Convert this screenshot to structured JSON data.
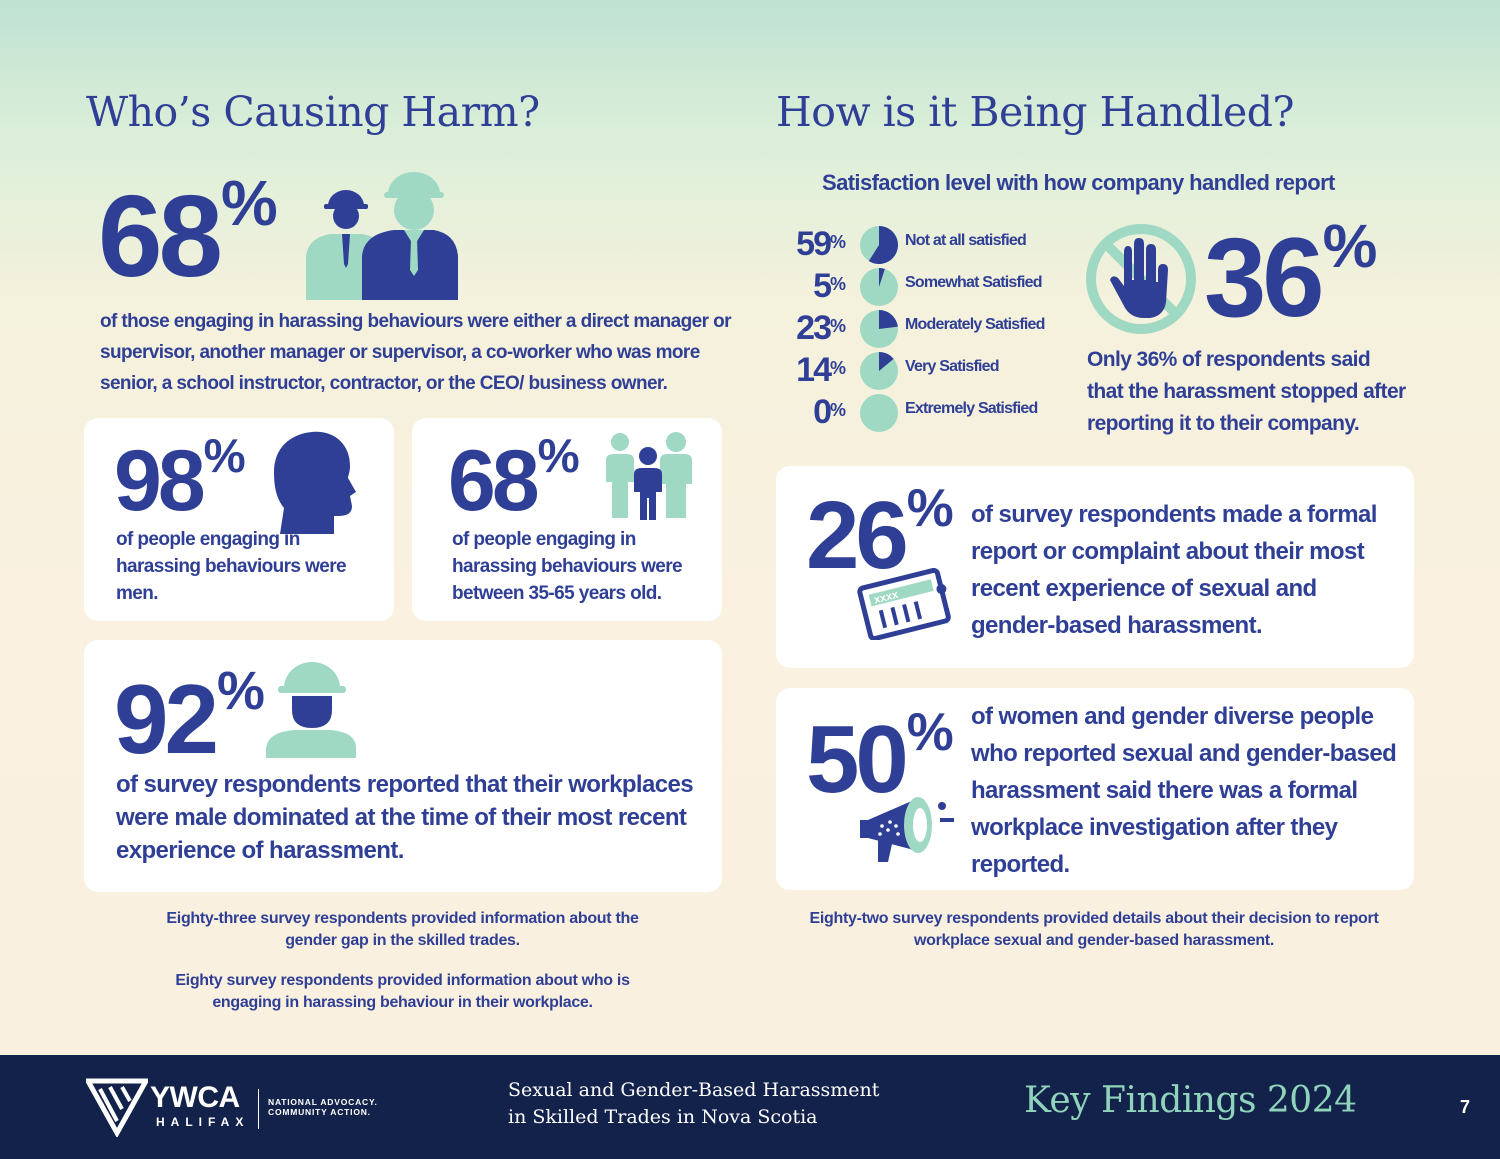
{
  "left": {
    "title": "Who’s Causing Harm?",
    "stat_managers": {
      "number": "68",
      "pct": "%",
      "text": "of those engaging in harassing behaviours were either a direct manager or supervisor, another manager or supervisor, a co-worker who was more senior, a school instructor, contractor, or the CEO/ business owner."
    },
    "stat_men": {
      "number": "98",
      "pct": "%",
      "text": "of people engaging in harassing behaviours were men."
    },
    "stat_age": {
      "number": "68",
      "pct": "%",
      "text": "of people engaging in harassing behaviours were between 35-65 years old."
    },
    "stat_male_dominated": {
      "number": "92",
      "pct": "%",
      "text": "of survey respondents reported that their workplaces were male dominated at the time of their most recent experience of harassment."
    },
    "note_1": "Eighty-three survey respondents provided information about the gender gap in the skilled trades.",
    "note_2": "Eighty survey respondents provided information about who is engaging in harassing behaviour in their workplace."
  },
  "right": {
    "title": "How is it Being Handled?",
    "satisfaction_title": "Satisfaction level with how company handled report",
    "stat_stopped": {
      "number": "36",
      "pct": "%",
      "text": "Only 36% of respondents said that the harassment stopped after reporting it to their company."
    },
    "stat_formal_report": {
      "number": "26",
      "pct": "%",
      "text": "of survey respondents made a formal report or complaint about their most recent experience of sexual and gender-based harassment."
    },
    "stat_investigation": {
      "number": "50",
      "pct": "%",
      "text": "of women and gender diverse people who reported sexual and gender-based harassment said there was a formal workplace investigation after they reported."
    },
    "note": "Eighty-two survey respondents provided details about their decision to report workplace sexual and gender-based harassment."
  },
  "chart_data": {
    "type": "pie",
    "title": "Satisfaction level with how company handled report",
    "categories": [
      "Not at all satisfied",
      "Somewhat Satisfied",
      "Moderately Satisfied",
      "Very Satisfied",
      "Extremely Satisfied"
    ],
    "values": [
      59,
      5,
      23,
      14,
      0
    ],
    "labels": [
      "59",
      "5",
      "23",
      "14",
      "0"
    ],
    "pct": "%"
  },
  "footer": {
    "org": "YWCA",
    "org_sub": "HALIFAX",
    "tagline_1": "NATIONAL ADVOCACY.",
    "tagline_2": "COMMUNITY ACTION.",
    "report_title_1": "Sexual and Gender-Based Harassment",
    "report_title_2": "in Skilled Trades in Nova Scotia",
    "key_findings": "Key Findings 2024",
    "page_number": "7"
  },
  "colors": {
    "primary_blue": "#2f3f96",
    "mint": "#9fd9c3",
    "footer_navy": "#13224a",
    "footer_mint": "#8fd3bb"
  }
}
